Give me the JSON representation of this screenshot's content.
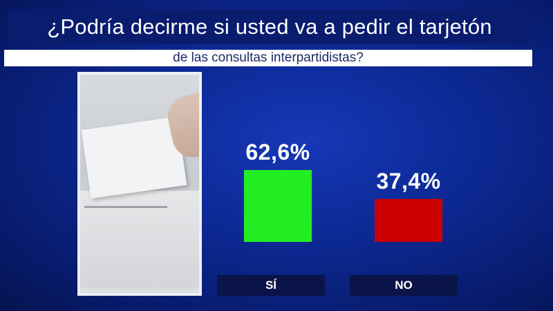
{
  "header": {
    "title": "¿Podría decirme si usted va a pedir el tarjetón",
    "subtitle": "de las consultas interpartidistas?"
  },
  "chart_data": {
    "type": "bar",
    "title": "¿Podría decirme si usted va a pedir el tarjetón de las consultas interpartidistas?",
    "categories": [
      "SÍ",
      "NO"
    ],
    "values": [
      62.6,
      37.4
    ],
    "value_labels": [
      "62,6%",
      "37,4%"
    ],
    "colors": [
      "#22ee22",
      "#cc0000"
    ],
    "ylim": [
      0,
      100
    ],
    "grid": false,
    "legend": "none"
  }
}
